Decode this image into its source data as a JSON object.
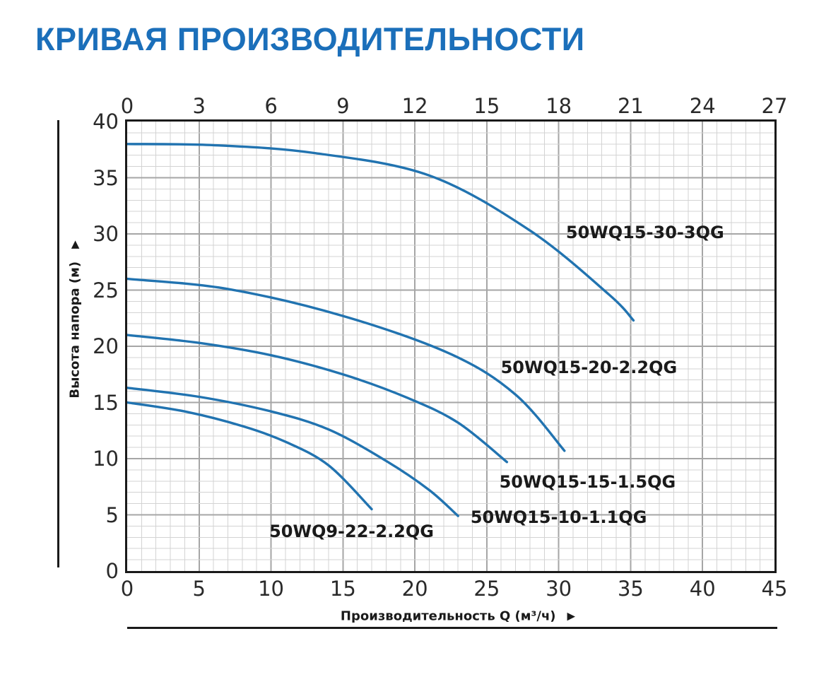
{
  "page": {
    "title": "КРИВАЯ ПРОИЗВОДИТЕЛЬНОСТИ"
  },
  "icons": {
    "triangle": "▶"
  },
  "colors": {
    "title": "#1b6fba",
    "curve": "#2173b0",
    "grid_minor": "#d3d3d3",
    "grid_major": "#a6a6a6",
    "axis_border": "#1a1a1a",
    "tick_text": "#2a2a2a"
  },
  "chart_data": {
    "type": "line",
    "title": "КРИВАЯ ПРОИЗВОДИТЕЛЬНОСТИ",
    "xlabel": "Производительность Q (м³/ч)",
    "ylabel": "Высота напора (м)",
    "grid": {
      "on": true,
      "minor_step": 1,
      "major_step": 5
    },
    "legend_position": "inline-labels",
    "x_bottom": {
      "range": [
        0,
        45
      ],
      "ticks": [
        0,
        5,
        10,
        15,
        20,
        25,
        30,
        35,
        40,
        45
      ]
    },
    "x_top": {
      "range": [
        0,
        27
      ],
      "ticks": [
        0,
        3,
        6,
        9,
        12,
        15,
        18,
        21,
        24,
        27
      ]
    },
    "y": {
      "range": [
        0,
        40
      ],
      "ticks": [
        0,
        5,
        10,
        15,
        20,
        25,
        30,
        35,
        40
      ]
    },
    "series": [
      {
        "name": "50WQ15-30-3QG",
        "points": [
          [
            0,
            38
          ],
          [
            6,
            37.9
          ],
          [
            13,
            37.2
          ],
          [
            21,
            35.2
          ],
          [
            28,
            30.3
          ],
          [
            33.5,
            24.6
          ],
          [
            35.2,
            22.3
          ]
        ],
        "label_at": [
          36.0,
          30.1
        ]
      },
      {
        "name": "50WQ15-20-2.2QG",
        "points": [
          [
            0,
            26
          ],
          [
            7,
            25.1
          ],
          [
            15,
            22.7
          ],
          [
            22.5,
            19.3
          ],
          [
            27,
            15.7
          ],
          [
            30.4,
            10.7
          ]
        ],
        "label_at": [
          32.1,
          18.1
        ]
      },
      {
        "name": "50WQ15-15-1.5QG",
        "points": [
          [
            0,
            21
          ],
          [
            5,
            20.3
          ],
          [
            10,
            19.2
          ],
          [
            15,
            17.5
          ],
          [
            19.5,
            15.4
          ],
          [
            23,
            13.2
          ],
          [
            26.4,
            9.7
          ]
        ],
        "label_at": [
          32.0,
          7.9
        ]
      },
      {
        "name": "50WQ15-10-1.1QG",
        "points": [
          [
            0,
            16.3
          ],
          [
            5,
            15.5
          ],
          [
            10,
            14.2
          ],
          [
            14,
            12.6
          ],
          [
            18,
            9.8
          ],
          [
            21,
            7.2
          ],
          [
            23,
            4.9
          ]
        ],
        "label_at": [
          30.0,
          4.8
        ]
      },
      {
        "name": "50WQ9-22-2.2QG",
        "points": [
          [
            0,
            15
          ],
          [
            4,
            14.2
          ],
          [
            8,
            12.9
          ],
          [
            11,
            11.5
          ],
          [
            14,
            9.4
          ],
          [
            17,
            5.5
          ]
        ],
        "label_at": [
          15.6,
          3.5
        ]
      }
    ]
  }
}
